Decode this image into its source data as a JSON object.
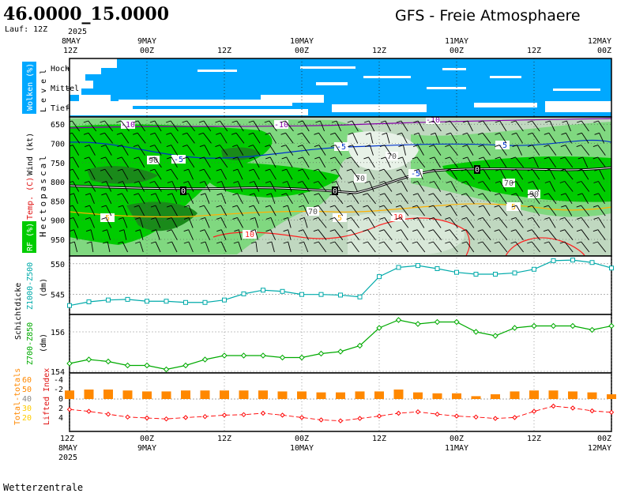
{
  "header": {
    "coords": "46.0000_15.0000",
    "run": "Lauf: 12Z",
    "model_title": "GFS - Freie Atmosphaere"
  },
  "footer": {
    "credit": "Wetterzentrale"
  },
  "time_axis": {
    "top_ticks": [
      {
        "l1": "2025",
        "l2": "8MAY",
        "l3": "12Z"
      },
      {
        "l1": "",
        "l2": "9MAY",
        "l3": "00Z"
      },
      {
        "l1": "",
        "l2": "",
        "l3": "12Z"
      },
      {
        "l1": "",
        "l2": "10MAY",
        "l3": "00Z"
      },
      {
        "l1": "",
        "l2": "",
        "l3": "12Z"
      },
      {
        "l1": "",
        "l2": "11MAY",
        "l3": "00Z"
      },
      {
        "l1": "",
        "l2": "",
        "l3": "12Z"
      },
      {
        "l1": "",
        "l2": "12MAY",
        "l3": "00Z"
      }
    ],
    "bottom_ticks": [
      {
        "l1": "12Z",
        "l2": "8MAY",
        "l3": "2025"
      },
      {
        "l1": "00Z",
        "l2": "9MAY",
        "l3": ""
      },
      {
        "l1": "12Z",
        "l2": "",
        "l3": ""
      },
      {
        "l1": "00Z",
        "l2": "10MAY",
        "l3": ""
      },
      {
        "l1": "12Z",
        "l2": "",
        "l3": ""
      },
      {
        "l1": "00Z",
        "l2": "11MAY",
        "l3": ""
      },
      {
        "l1": "12Z",
        "l2": "",
        "l3": ""
      },
      {
        "l1": "00Z",
        "l2": "12MAY",
        "l3": ""
      }
    ],
    "hours": [
      0,
      12,
      24,
      36,
      48,
      60,
      72,
      84
    ]
  },
  "colors": {
    "sky": "#00a8ff",
    "rh_high": "#00cc00",
    "rh_mid": "#80d880",
    "rh_low": "#c0d8c0",
    "temp_neg10": "#8800aa",
    "temp_neg5": "#0033cc",
    "temp_zero": "#000000",
    "temp_pos5": "#ffb000",
    "temp_pos10": "#ff2020",
    "thickness1": "#00aaaa",
    "thickness2": "#00aa00",
    "lifted": "#ff0000",
    "totals": "#ff8800"
  },
  "chart_data": [
    {
      "type": "heatmap",
      "name": "Wolken",
      "ylabel": "Wolken (%)",
      "ylabel2": "L e v e l",
      "levels": [
        "Hoch",
        "Mittel",
        "Tief"
      ]
    },
    {
      "type": "heatmap",
      "name": "Freie Atmosphaere",
      "ylabel": "Hectopascal",
      "ylabel_wind": "Wind (kt)",
      "ylabel_temp": "Temp. (C)",
      "ylabel_rh": "RF (%)",
      "pressure_ticks": [
        850,
        800,
        750,
        700,
        650,
        600,
        550
      ],
      "pressure_tick_labels": [
        "950",
        "900",
        "850",
        "800",
        "750",
        "700",
        "650"
      ],
      "isotherm_labels": [
        "-10",
        "-10",
        "-10",
        "-5",
        "-5",
        "-5",
        "-5",
        "0",
        "0",
        "0",
        "5",
        "5",
        "5",
        "10",
        "10"
      ],
      "rh_labels": [
        "90",
        "70",
        "70",
        "70",
        "70",
        "90"
      ]
    },
    {
      "type": "line",
      "name": "Schichtdicke Z1000-Z500",
      "ylabel": "Schichtdicke",
      "series_label": "Z1000-Z500",
      "unit": "(dm)",
      "ylim": [
        542,
        551
      ],
      "yticks": [
        545,
        550
      ],
      "x": [
        0,
        3,
        6,
        9,
        12,
        15,
        18,
        21,
        24,
        27,
        30,
        33,
        36,
        39,
        42,
        45,
        48,
        51,
        54,
        57,
        60,
        63,
        66,
        69,
        72,
        75,
        78,
        81,
        84
      ],
      "values": [
        543.2,
        543.8,
        544.1,
        544.2,
        543.9,
        543.9,
        543.7,
        543.7,
        544.1,
        545.1,
        545.7,
        545.5,
        545.0,
        545.0,
        544.9,
        544.6,
        547.9,
        549.4,
        549.7,
        549.2,
        548.6,
        548.3,
        548.3,
        548.5,
        549.1,
        550.5,
        550.6,
        550.2,
        549.3
      ]
    },
    {
      "type": "line",
      "name": "Schichtdicke Z700-Z850",
      "series_label": "Z700-Z850",
      "unit": "(dm)",
      "ylim": [
        154,
        156.8
      ],
      "yticks": [
        154,
        156
      ],
      "x": [
        0,
        3,
        6,
        9,
        12,
        15,
        18,
        21,
        24,
        27,
        30,
        33,
        36,
        39,
        42,
        45,
        48,
        51,
        54,
        57,
        60,
        63,
        66,
        69,
        72,
        75,
        78,
        81,
        84
      ],
      "values": [
        154.4,
        154.6,
        154.5,
        154.3,
        154.3,
        154.1,
        154.3,
        154.6,
        154.8,
        154.8,
        154.8,
        154.7,
        154.7,
        154.9,
        155.0,
        155.3,
        156.2,
        156.6,
        156.4,
        156.5,
        156.5,
        156.0,
        155.8,
        156.2,
        156.3,
        156.3,
        156.3,
        156.1,
        156.3
      ]
    },
    {
      "type": "bar",
      "name": "Total-totals / Lifted Index",
      "ylabel_totals": "Total-totals",
      "ylabel_li": "Lifted Index",
      "totals_ticks": [
        "60",
        "50",
        "40",
        "30",
        "20"
      ],
      "li_ticks": [
        "-4",
        "-2",
        "0",
        "2",
        "4"
      ],
      "x": [
        0,
        3,
        6,
        9,
        12,
        15,
        18,
        21,
        24,
        27,
        30,
        33,
        36,
        39,
        42,
        45,
        48,
        51,
        54,
        57,
        60,
        63,
        66,
        69,
        72,
        75,
        78,
        81,
        84
      ],
      "totals": [
        49,
        50,
        50,
        49,
        48,
        48,
        49,
        49,
        49,
        49,
        49,
        48,
        48,
        47,
        47,
        48,
        48,
        50,
        47,
        46,
        46,
        43,
        45,
        48,
        49,
        49,
        48,
        47,
        45
      ],
      "lifted_index": [
        2.2,
        2.6,
        3.2,
        3.8,
        4.0,
        4.2,
        3.9,
        3.7,
        3.4,
        3.3,
        3.0,
        3.4,
        3.9,
        4.4,
        4.6,
        4.1,
        3.6,
        3.0,
        2.7,
        3.2,
        3.6,
        3.8,
        4.1,
        3.9,
        2.6,
        1.5,
        1.9,
        2.5,
        2.8
      ]
    }
  ]
}
